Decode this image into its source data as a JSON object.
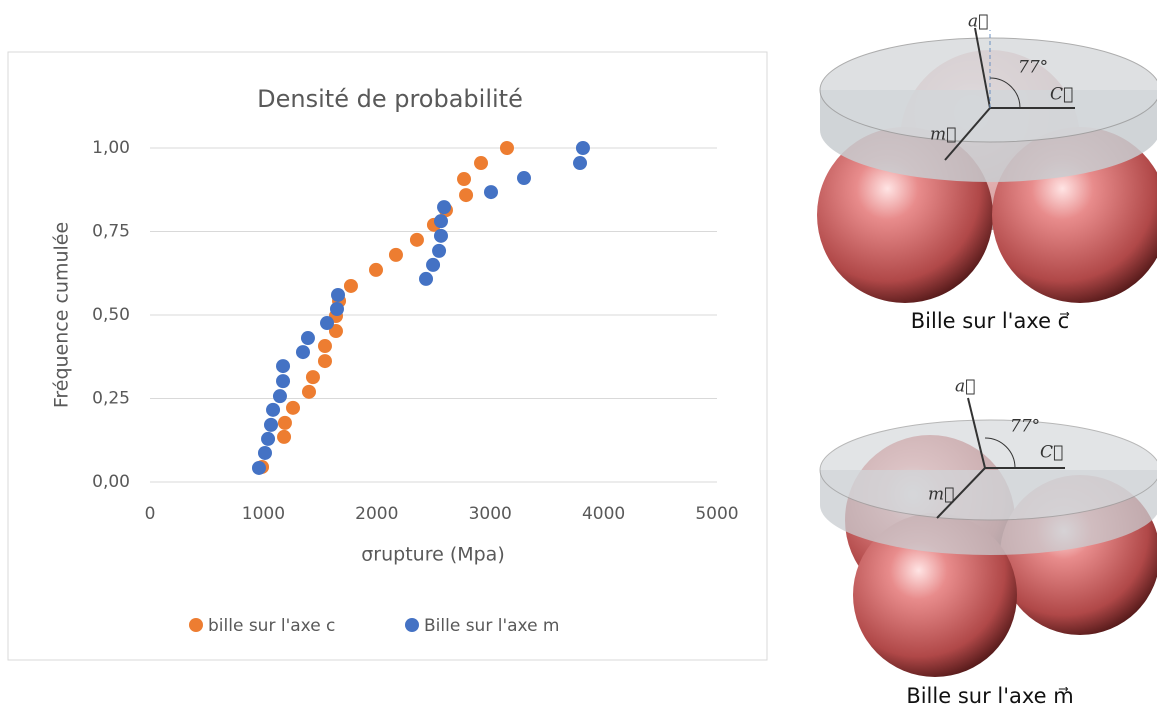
{
  "chart_data": {
    "type": "scatter",
    "title": "Densité de probabilité",
    "x_label": "σrupture (Mpa)",
    "y_label": "Fréquence cumulée",
    "xlim": [
      0,
      5000
    ],
    "xticks": [
      0,
      1000,
      2000,
      3000,
      4000,
      5000
    ],
    "ylim": [
      0,
      1
    ],
    "yticks": [
      {
        "value": 0,
        "label": "0,00"
      },
      {
        "value": 0.25,
        "label": "0,25"
      },
      {
        "value": 0.5,
        "label": "0,50"
      },
      {
        "value": 0.75,
        "label": "0,75"
      },
      {
        "value": 1,
        "label": "1,00"
      }
    ],
    "grid": true,
    "legend": "bottom",
    "series": [
      {
        "name": "bille sur l'axe c",
        "color": "#ed7d31",
        "x": [
          988,
          1182,
          1190,
          1261,
          1402,
          1437,
          1543,
          1543,
          1640,
          1640,
          1667,
          1772,
          1993,
          2169,
          2354,
          2504,
          2610,
          2787,
          2769,
          2919,
          3148
        ],
        "y": [
          0.045,
          0.135,
          0.177,
          0.222,
          0.27,
          0.314,
          0.362,
          0.407,
          0.452,
          0.497,
          0.542,
          0.587,
          0.635,
          0.68,
          0.725,
          0.77,
          0.814,
          0.859,
          0.907,
          0.955,
          1.0
        ]
      },
      {
        "name": "Bille sur l'axe m",
        "color": "#4472c4",
        "x": [
          961,
          1014,
          1041,
          1067,
          1085,
          1146,
          1173,
          1173,
          1349,
          1393,
          1561,
          1649,
          1658,
          2434,
          2496,
          2549,
          2566,
          2566,
          2593,
          3007,
          3298,
          3792,
          3818
        ],
        "y": [
          0.042,
          0.087,
          0.129,
          0.171,
          0.216,
          0.257,
          0.302,
          0.347,
          0.389,
          0.431,
          0.476,
          0.518,
          0.56,
          0.608,
          0.65,
          0.692,
          0.737,
          0.781,
          0.823,
          0.868,
          0.91,
          0.955,
          1.0
        ]
      }
    ]
  },
  "illustrations": [
    {
      "caption": "Bille sur l'axe c⃗",
      "label_a": "a⃗",
      "label_c": "C⃗",
      "label_m": "m⃗",
      "angle": "77°"
    },
    {
      "caption": "Bille sur l'axe m⃗",
      "label_a": "a⃗",
      "label_c": "C⃗",
      "label_m": "m⃗",
      "angle": "77°"
    }
  ]
}
